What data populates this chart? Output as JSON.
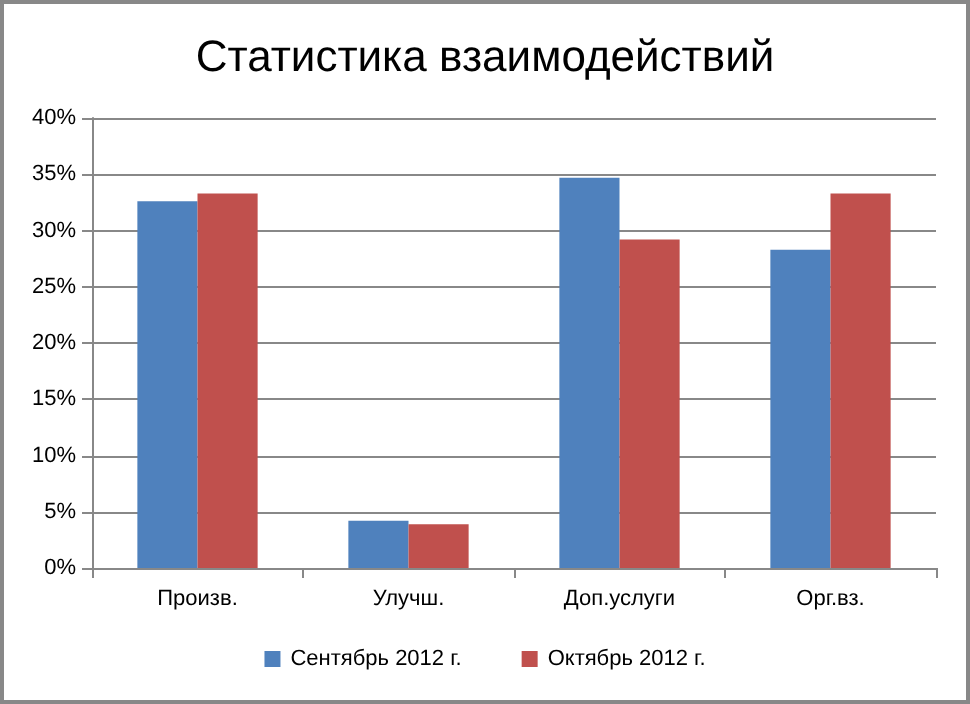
{
  "chart_data": {
    "type": "bar",
    "title": "Статистика взаимодействий",
    "categories": [
      "Произв.",
      "Улучш.",
      "Доп.услуги",
      "Орг.вз."
    ],
    "series": [
      {
        "name": "Сентябрь 2012 г.",
        "color": "#4f81bd",
        "values": [
          32.6,
          4.2,
          34.7,
          28.3
        ]
      },
      {
        "name": "Октябрь 2012 г.",
        "color": "#c0504d",
        "values": [
          33.3,
          3.9,
          29.2,
          33.3
        ]
      }
    ],
    "ylim": [
      0,
      40
    ],
    "yticks": [
      {
        "value": 0,
        "label": "0%"
      },
      {
        "value": 5,
        "label": "5%"
      },
      {
        "value": 10,
        "label": "10%"
      },
      {
        "value": 15,
        "label": "15%"
      },
      {
        "value": 20,
        "label": "20%"
      },
      {
        "value": 25,
        "label": "25%"
      },
      {
        "value": 30,
        "label": "30%"
      },
      {
        "value": 35,
        "label": "35%"
      },
      {
        "value": 40,
        "label": "40%"
      }
    ],
    "grid": "y",
    "legend": "bottom"
  }
}
